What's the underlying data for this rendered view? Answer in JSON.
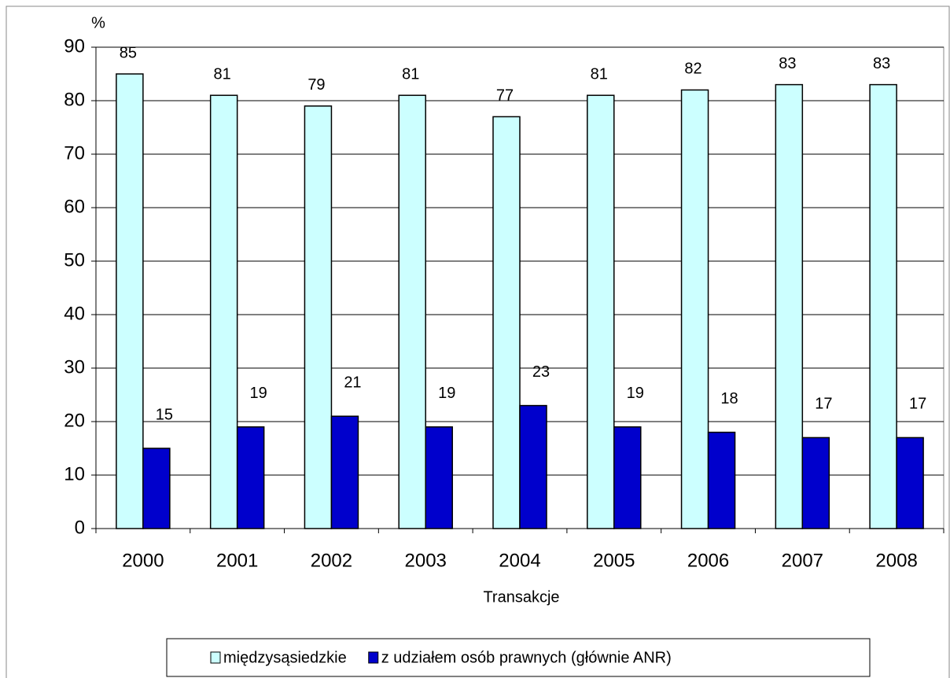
{
  "chart_data": {
    "type": "bar",
    "y_label": "%",
    "x_label": "Transakcje",
    "categories": [
      "2000",
      "2001",
      "2002",
      "2003",
      "2004",
      "2005",
      "2006",
      "2007",
      "2008"
    ],
    "series": [
      {
        "name": "międzysąsiedzkie",
        "color": "#ccffff",
        "values": [
          85,
          81,
          79,
          81,
          77,
          81,
          82,
          83,
          83
        ]
      },
      {
        "name": "z udziałem osób prawnych (głównie ANR)",
        "color": "#0000cc",
        "values": [
          15,
          19,
          21,
          19,
          23,
          19,
          18,
          17,
          17
        ]
      }
    ],
    "ylim": [
      0,
      90
    ],
    "yticks": [
      0,
      10,
      20,
      30,
      40,
      50,
      60,
      70,
      80,
      90
    ],
    "grid": true,
    "legend": "bottom"
  }
}
